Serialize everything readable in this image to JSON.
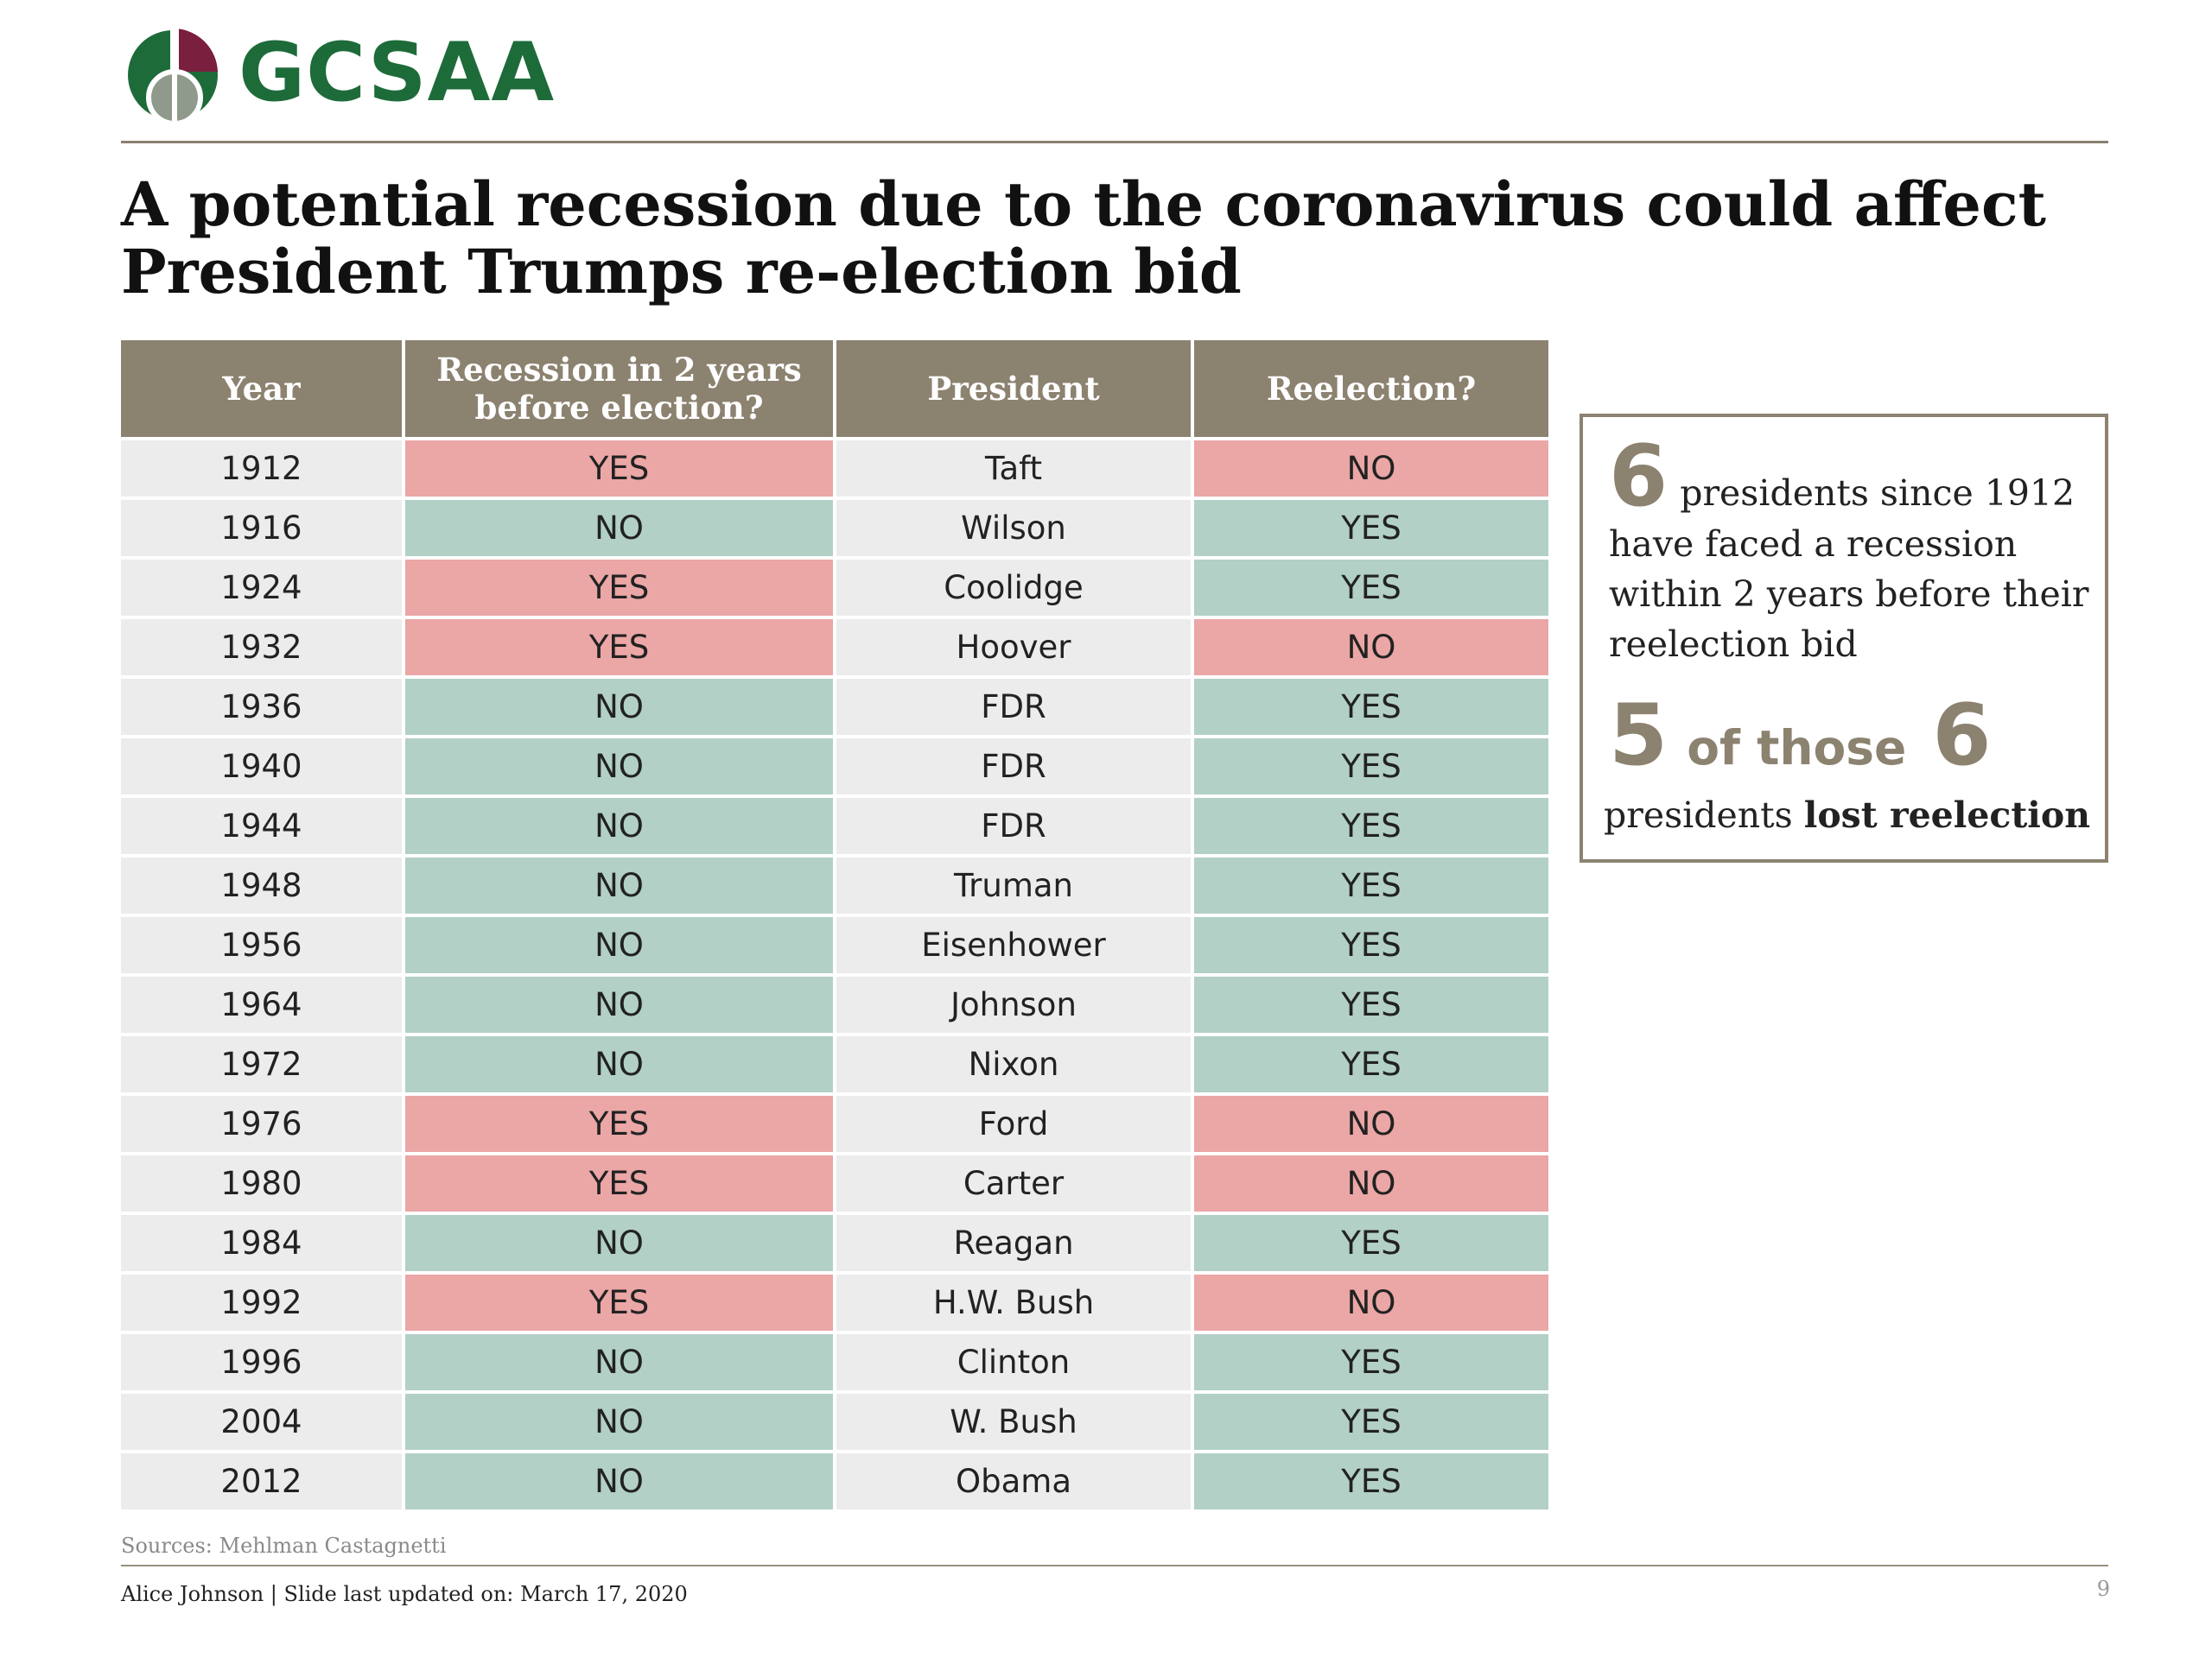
{
  "logo": {
    "text": "GCSAA",
    "colors": {
      "green": "#1e6b3a",
      "maroon": "#7a1f3d",
      "grey": "#8f9a8c"
    }
  },
  "title": "A potential recession due to the coronavirus could affect President Trumps re-election bid",
  "table": {
    "headers": [
      "Year",
      "Recession in 2 years before election?",
      "President",
      "Reelection?"
    ],
    "rows": [
      {
        "year": "1912",
        "recession": "YES",
        "president": "Taft",
        "reelection": "NO"
      },
      {
        "year": "1916",
        "recession": "NO",
        "president": "Wilson",
        "reelection": "YES"
      },
      {
        "year": "1924",
        "recession": "YES",
        "president": "Coolidge",
        "reelection": "YES"
      },
      {
        "year": "1932",
        "recession": "YES",
        "president": "Hoover",
        "reelection": "NO"
      },
      {
        "year": "1936",
        "recession": "NO",
        "president": "FDR",
        "reelection": "YES"
      },
      {
        "year": "1940",
        "recession": "NO",
        "president": "FDR",
        "reelection": "YES"
      },
      {
        "year": "1944",
        "recession": "NO",
        "president": "FDR",
        "reelection": "YES"
      },
      {
        "year": "1948",
        "recession": "NO",
        "president": "Truman",
        "reelection": "YES"
      },
      {
        "year": "1956",
        "recession": "NO",
        "president": "Eisenhower",
        "reelection": "YES"
      },
      {
        "year": "1964",
        "recession": "NO",
        "president": "Johnson",
        "reelection": "YES"
      },
      {
        "year": "1972",
        "recession": "NO",
        "president": "Nixon",
        "reelection": "YES"
      },
      {
        "year": "1976",
        "recession": "YES",
        "president": "Ford",
        "reelection": "NO"
      },
      {
        "year": "1980",
        "recession": "YES",
        "president": "Carter",
        "reelection": "NO"
      },
      {
        "year": "1984",
        "recession": "NO",
        "president": "Reagan",
        "reelection": "YES"
      },
      {
        "year": "1992",
        "recession": "YES",
        "president": "H.W. Bush",
        "reelection": "NO"
      },
      {
        "year": "1996",
        "recession": "NO",
        "president": "Clinton",
        "reelection": "YES"
      },
      {
        "year": "2004",
        "recession": "NO",
        "president": "W. Bush",
        "reelection": "YES"
      },
      {
        "year": "2012",
        "recession": "NO",
        "president": "Obama",
        "reelection": "YES"
      }
    ],
    "colors": {
      "header": "#8c8270",
      "red": "#eba6a6",
      "green": "#b2d0c6",
      "neutral": "#ececec"
    }
  },
  "callout": {
    "num1": "6",
    "text1": "presidents since 1912 have faced a recession within 2 years before their reelection bid",
    "num2": "5",
    "mid": "of those",
    "num3": "6",
    "text2_prefix": "presidents",
    "text2_bold": "lost reelection"
  },
  "sources": "Sources: Mehlman Castagnetti",
  "footer": "Alice Johnson | Slide last updated on: March 17, 2020",
  "page_number": "9"
}
